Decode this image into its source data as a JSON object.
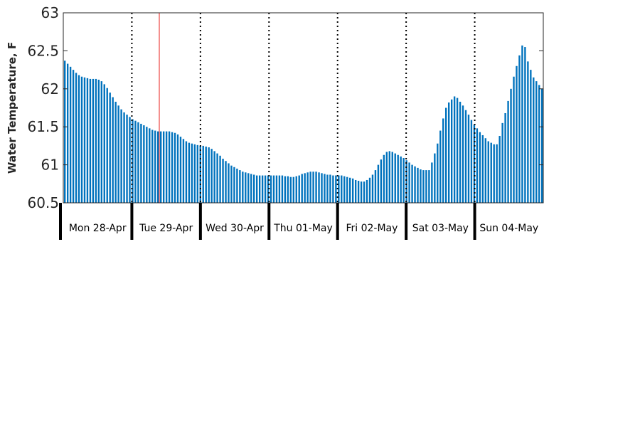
{
  "chart_data": {
    "type": "bar",
    "title": "",
    "xlabel": "",
    "ylabel": "Water Temperature, F",
    "ylim": [
      60.5,
      63
    ],
    "yticks": [
      "60.5",
      "61",
      "61.5",
      "62",
      "62.5",
      "63"
    ],
    "grid": false,
    "bar_color": "#0072bd",
    "day_labels": [
      "Mon 28-Apr",
      "Tue 29-Apr",
      "Wed 30-Apr",
      "Thu 01-May",
      "Fri 02-May",
      "Sat 03-May",
      "Sun 04-May"
    ],
    "day_divider_style": "dotted",
    "marker_line": {
      "color": "#e8211d",
      "day_position": 1.4
    },
    "samples_per_day": 24,
    "values": [
      62.37,
      62.33,
      62.29,
      62.25,
      62.21,
      62.18,
      62.16,
      62.15,
      62.14,
      62.13,
      62.13,
      62.13,
      62.12,
      62.1,
      62.06,
      62.01,
      61.95,
      61.89,
      61.83,
      61.78,
      61.73,
      61.69,
      61.66,
      61.63,
      61.6,
      61.58,
      61.56,
      61.54,
      61.52,
      61.5,
      61.48,
      61.46,
      61.45,
      61.44,
      61.44,
      61.44,
      61.44,
      61.44,
      61.43,
      61.42,
      61.4,
      61.37,
      61.34,
      61.31,
      61.29,
      61.28,
      61.27,
      61.26,
      61.25,
      61.25,
      61.24,
      61.23,
      61.21,
      61.18,
      61.15,
      61.12,
      61.08,
      61.05,
      61.02,
      60.99,
      60.97,
      60.95,
      60.93,
      60.91,
      60.9,
      60.89,
      60.88,
      60.87,
      60.86,
      60.86,
      60.86,
      60.86,
      60.86,
      60.86,
      60.86,
      60.86,
      60.86,
      60.86,
      60.85,
      60.85,
      60.84,
      60.84,
      60.85,
      60.86,
      60.88,
      60.89,
      60.9,
      60.91,
      60.91,
      60.91,
      60.9,
      60.89,
      60.88,
      60.87,
      60.87,
      60.86,
      60.86,
      60.86,
      60.86,
      60.85,
      60.84,
      60.83,
      60.82,
      60.8,
      60.79,
      60.78,
      60.78,
      60.8,
      60.83,
      60.87,
      60.93,
      61.0,
      61.07,
      61.13,
      61.17,
      61.18,
      61.17,
      61.15,
      61.13,
      61.11,
      61.09,
      61.06,
      61.03,
      61.0,
      60.98,
      60.96,
      60.94,
      60.93,
      60.93,
      60.93,
      61.03,
      61.15,
      61.28,
      61.45,
      61.61,
      61.75,
      61.82,
      61.86,
      61.9,
      61.88,
      61.83,
      61.78,
      61.72,
      61.66,
      61.59,
      61.53,
      61.48,
      61.43,
      61.39,
      61.35,
      61.31,
      61.29,
      61.27,
      61.27,
      61.38,
      61.55,
      61.68,
      61.84,
      62.0,
      62.16,
      62.3,
      62.44,
      62.57,
      62.55,
      62.36,
      62.25,
      62.15,
      62.1,
      62.05,
      62.0
    ]
  }
}
